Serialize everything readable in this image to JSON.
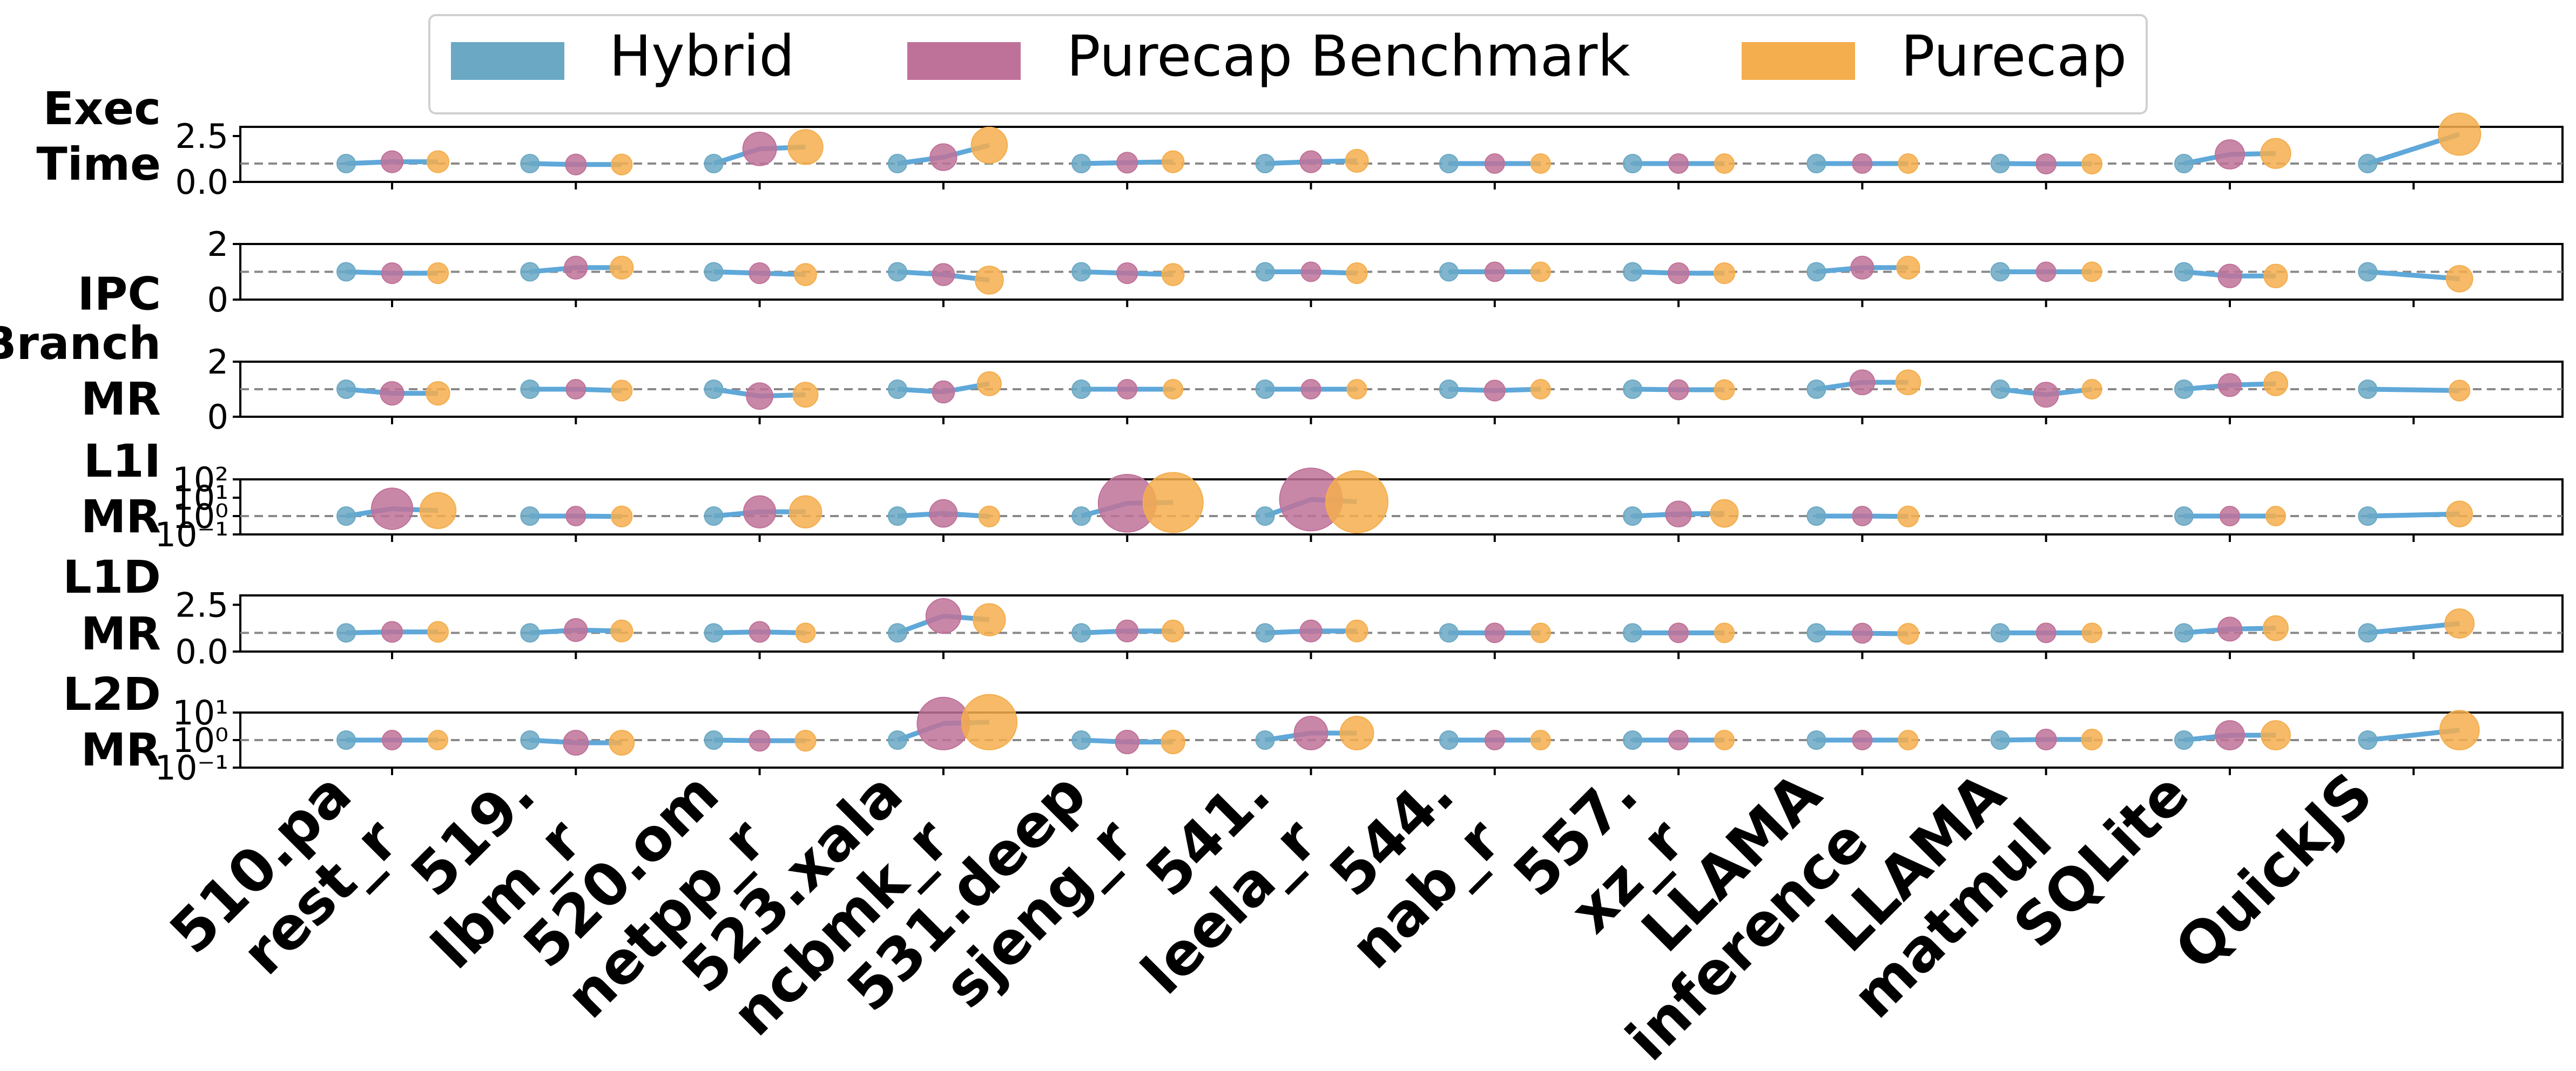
{
  "legend": [
    {
      "label": "Hybrid",
      "color": "#6aa8c4"
    },
    {
      "label": "Purecap Benchmark",
      "color": "#bf7299"
    },
    {
      "label": "Purecap",
      "color": "#f4ae4d"
    }
  ],
  "line_color": "#5fa8d9",
  "chart_data": {
    "type": "scatter",
    "grid": false,
    "reference_line": 1.0,
    "categories": [
      [
        "510.pa",
        "rest_r"
      ],
      [
        "519.",
        "lbm_r"
      ],
      [
        "520.om",
        "netpp_r"
      ],
      [
        "523.xala",
        "ncbmk_r"
      ],
      [
        "531.deep",
        "sjeng_r"
      ],
      [
        "541.",
        "leela_r"
      ],
      [
        "544.",
        "nab_r"
      ],
      [
        "557.",
        "xz_r"
      ],
      [
        "LLAMA",
        "inference"
      ],
      [
        "LLAMA",
        "matmul"
      ],
      [
        "SQLite",
        ""
      ],
      [
        "QuickJS",
        ""
      ]
    ],
    "series_names": [
      "Hybrid",
      "Purecap Benchmark",
      "Purecap"
    ],
    "panels": [
      {
        "ylabel": [
          "Exec",
          "Time"
        ],
        "scale": "linear",
        "ylim": [
          0,
          3.0
        ],
        "yticks": [
          0.0,
          2.5
        ],
        "ytick_labels": [
          "0.0",
          "2.5"
        ],
        "values": [
          [
            1.0,
            1.1,
            1.1
          ],
          [
            1.0,
            0.95,
            0.95
          ],
          [
            1.0,
            1.8,
            1.9
          ],
          [
            1.0,
            1.35,
            2.0
          ],
          [
            1.0,
            1.05,
            1.1
          ],
          [
            1.0,
            1.1,
            1.15
          ],
          [
            1.0,
            1.0,
            1.0
          ],
          [
            1.0,
            1.0,
            1.0
          ],
          [
            1.0,
            1.0,
            1.0
          ],
          [
            1.0,
            0.98,
            0.98
          ],
          [
            1.0,
            1.5,
            1.55
          ],
          [
            1.0,
            null,
            2.6
          ]
        ]
      },
      {
        "ylabel": [
          "IPC"
        ],
        "scale": "linear",
        "ylim": [
          0,
          2.0
        ],
        "yticks": [
          0,
          2
        ],
        "ytick_labels": [
          "0",
          "2"
        ],
        "values": [
          [
            1.0,
            0.95,
            0.95
          ],
          [
            1.0,
            1.15,
            1.15
          ],
          [
            1.0,
            0.95,
            0.9
          ],
          [
            1.0,
            0.9,
            0.7
          ],
          [
            1.0,
            0.95,
            0.9
          ],
          [
            1.0,
            1.0,
            0.95
          ],
          [
            1.0,
            1.0,
            1.0
          ],
          [
            1.0,
            0.95,
            0.95
          ],
          [
            1.0,
            1.15,
            1.15
          ],
          [
            1.0,
            1.0,
            1.0
          ],
          [
            1.0,
            0.85,
            0.85
          ],
          [
            1.0,
            null,
            0.75
          ]
        ]
      },
      {
        "ylabel": [
          "Branch",
          "MR"
        ],
        "scale": "linear",
        "ylim": [
          0,
          2.0
        ],
        "yticks": [
          0,
          2
        ],
        "ytick_labels": [
          "0",
          "2"
        ],
        "values": [
          [
            1.0,
            0.85,
            0.85
          ],
          [
            1.0,
            1.0,
            0.95
          ],
          [
            1.0,
            0.75,
            0.8
          ],
          [
            1.0,
            0.9,
            1.2
          ],
          [
            1.0,
            1.0,
            1.0
          ],
          [
            1.0,
            1.0,
            1.0
          ],
          [
            1.0,
            0.95,
            1.0
          ],
          [
            1.0,
            0.98,
            0.98
          ],
          [
            1.0,
            1.25,
            1.25
          ],
          [
            1.0,
            0.8,
            1.0
          ],
          [
            1.0,
            1.15,
            1.2
          ],
          [
            1.0,
            null,
            0.95
          ]
        ]
      },
      {
        "ylabel": [
          "L1I",
          "MR"
        ],
        "scale": "log",
        "ylim": [
          0.1,
          100
        ],
        "yticks": [
          0.1,
          1,
          10,
          100
        ],
        "ytick_labels": [
          "10⁻¹",
          "10⁰",
          "10¹",
          "10²"
        ],
        "values": [
          [
            1.0,
            2.5,
            2.0
          ],
          [
            1.0,
            1.0,
            0.95
          ],
          [
            1.0,
            1.7,
            1.7
          ],
          [
            1.0,
            1.4,
            0.95
          ],
          [
            1.0,
            5.0,
            5.5
          ],
          [
            1.0,
            8.0,
            6.0
          ],
          [
            null,
            null,
            null
          ],
          [
            1.0,
            1.3,
            1.4
          ],
          [
            1.0,
            1.0,
            0.95
          ],
          [
            null,
            null,
            null
          ],
          [
            1.0,
            1.0,
            1.0
          ],
          [
            1.0,
            null,
            1.3
          ]
        ]
      },
      {
        "ylabel": [
          "L1D",
          "MR"
        ],
        "scale": "linear",
        "ylim": [
          0,
          3.0
        ],
        "yticks": [
          0.0,
          2.5
        ],
        "ytick_labels": [
          "0.0",
          "2.5"
        ],
        "values": [
          [
            1.0,
            1.05,
            1.05
          ],
          [
            1.0,
            1.15,
            1.1
          ],
          [
            1.0,
            1.05,
            1.0
          ],
          [
            1.0,
            1.9,
            1.7
          ],
          [
            1.0,
            1.1,
            1.1
          ],
          [
            1.0,
            1.1,
            1.1
          ],
          [
            1.0,
            1.0,
            1.0
          ],
          [
            1.0,
            1.0,
            1.0
          ],
          [
            1.0,
            0.98,
            0.95
          ],
          [
            1.0,
            1.0,
            1.0
          ],
          [
            1.0,
            1.2,
            1.25
          ],
          [
            1.0,
            null,
            1.5
          ]
        ]
      },
      {
        "ylabel": [
          "L2D",
          "MR"
        ],
        "scale": "log",
        "ylim": [
          0.1,
          10
        ],
        "yticks": [
          0.1,
          1,
          10
        ],
        "ytick_labels": [
          "10⁻¹",
          "10⁰",
          "10¹"
        ],
        "values": [
          [
            1.0,
            1.0,
            1.0
          ],
          [
            1.0,
            0.8,
            0.8
          ],
          [
            1.0,
            0.95,
            0.95
          ],
          [
            1.0,
            4.0,
            4.5
          ],
          [
            1.0,
            0.85,
            0.85
          ],
          [
            1.0,
            1.8,
            1.8
          ],
          [
            1.0,
            1.0,
            1.0
          ],
          [
            1.0,
            1.0,
            1.0
          ],
          [
            1.0,
            1.0,
            1.0
          ],
          [
            1.0,
            1.05,
            1.05
          ],
          [
            1.0,
            1.5,
            1.5
          ],
          [
            1.0,
            null,
            2.3
          ]
        ]
      }
    ]
  }
}
